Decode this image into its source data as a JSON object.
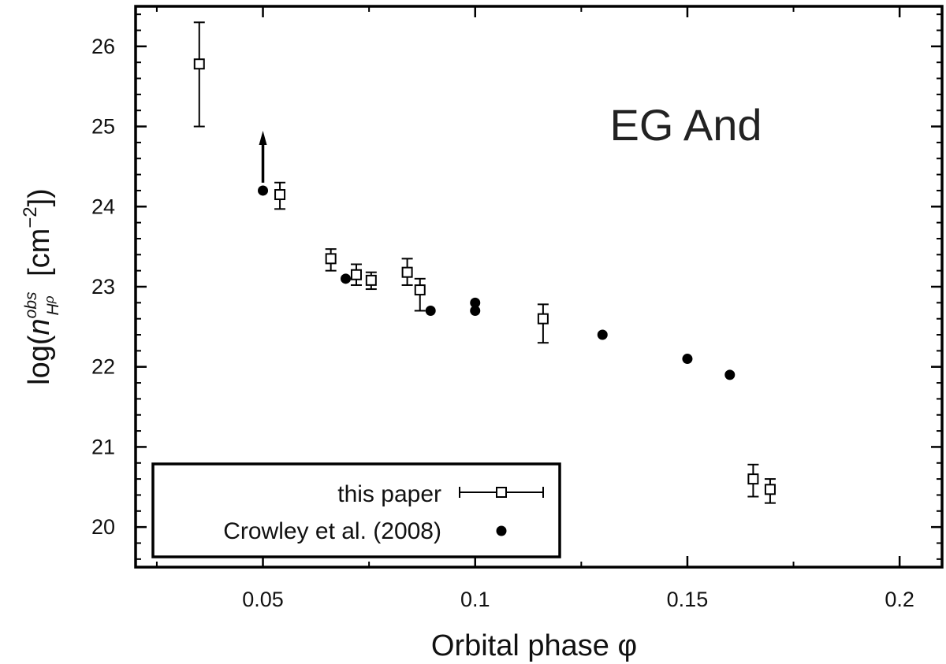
{
  "chart_data": {
    "type": "scatter",
    "xlabel": "Orbital phase φ",
    "ylabel_prefix": "log(",
    "ylabel_n": "n",
    "ylabel_H": "H",
    "ylabel_rho": "ρ",
    "ylabel_obs": "obs",
    "ylabel_unit": " [cm",
    "ylabel_exp": "−2",
    "ylabel_suffix": "])",
    "xlim": [
      0.02,
      0.21
    ],
    "ylim": [
      19.5,
      26.5
    ],
    "x_ticks": [
      0.05,
      0.1,
      0.15,
      0.2
    ],
    "x_tick_labels": [
      "0.05",
      "0.1",
      "0.15",
      "0.2"
    ],
    "y_ticks": [
      20,
      21,
      22,
      23,
      24,
      25,
      26
    ],
    "y_tick_labels": [
      "20",
      "21",
      "22",
      "23",
      "24",
      "25",
      "26"
    ],
    "grid": false,
    "legend_position": "bottom-left",
    "annotation": "EG And",
    "series": [
      {
        "name": "this paper",
        "marker": "open-square-with-errorbars",
        "points": [
          {
            "x": 0.035,
            "y": 25.78,
            "ylo": 25.0,
            "yhi": 26.3
          },
          {
            "x": 0.054,
            "y": 24.15,
            "ylo": 23.97,
            "yhi": 24.3
          },
          {
            "x": 0.066,
            "y": 23.35,
            "ylo": 23.2,
            "yhi": 23.47
          },
          {
            "x": 0.072,
            "y": 23.15,
            "ylo": 23.02,
            "yhi": 23.28
          },
          {
            "x": 0.0755,
            "y": 23.08,
            "ylo": 22.97,
            "yhi": 23.18
          },
          {
            "x": 0.084,
            "y": 23.18,
            "ylo": 23.02,
            "yhi": 23.35
          },
          {
            "x": 0.087,
            "y": 22.96,
            "ylo": 22.7,
            "yhi": 23.1
          },
          {
            "x": 0.116,
            "y": 22.6,
            "ylo": 22.3,
            "yhi": 22.78
          },
          {
            "x": 0.1655,
            "y": 20.6,
            "ylo": 20.38,
            "yhi": 20.78
          },
          {
            "x": 0.1695,
            "y": 20.47,
            "ylo": 20.3,
            "yhi": 20.6
          }
        ]
      },
      {
        "name": "Crowley et al. (2008)",
        "marker": "filled-circle",
        "points": [
          {
            "x": 0.05,
            "y": 24.2,
            "lower_limit": true
          },
          {
            "x": 0.0695,
            "y": 23.1
          },
          {
            "x": 0.0895,
            "y": 22.7
          },
          {
            "x": 0.1,
            "y": 22.8
          },
          {
            "x": 0.1,
            "y": 22.7
          },
          {
            "x": 0.13,
            "y": 22.4
          },
          {
            "x": 0.15,
            "y": 22.1
          },
          {
            "x": 0.16,
            "y": 21.9
          }
        ]
      }
    ]
  }
}
